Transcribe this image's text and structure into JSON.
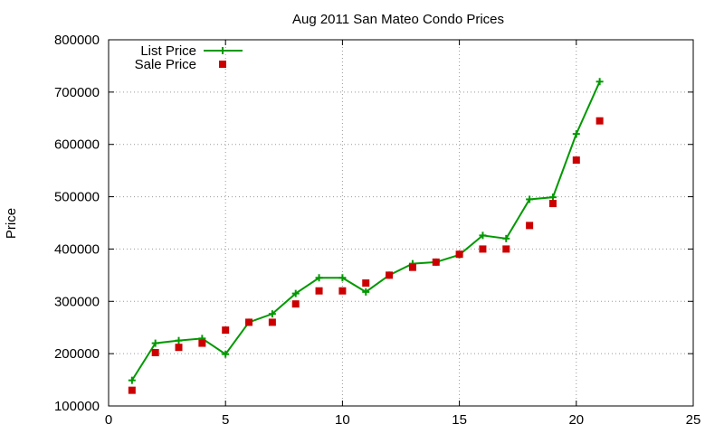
{
  "chart_data": {
    "type": "line",
    "title": "Aug 2011 San Mateo Condo Prices",
    "xlabel": "",
    "ylabel": "Price",
    "xlim": [
      0,
      25
    ],
    "ylim": [
      100000,
      800000
    ],
    "x_ticks": [
      0,
      5,
      10,
      15,
      20,
      25
    ],
    "y_ticks": [
      100000,
      200000,
      300000,
      400000,
      500000,
      600000,
      700000,
      800000
    ],
    "grid": true,
    "legend_position": "top-left",
    "series": [
      {
        "name": "List Price",
        "style": "line-with-plus-markers",
        "color": "#009900",
        "x": [
          1,
          2,
          3,
          4,
          5,
          6,
          7,
          8,
          9,
          10,
          11,
          12,
          13,
          14,
          15,
          16,
          17,
          18,
          19,
          20,
          21
        ],
        "values": [
          149000,
          220000,
          225000,
          229000,
          199000,
          260000,
          276000,
          315000,
          345000,
          345000,
          318000,
          350000,
          372000,
          375000,
          389000,
          426000,
          420000,
          495000,
          499000,
          620000,
          720000
        ]
      },
      {
        "name": "Sale Price",
        "style": "square-markers",
        "color": "#cc0000",
        "x": [
          1,
          2,
          3,
          4,
          5,
          6,
          7,
          8,
          9,
          10,
          11,
          12,
          13,
          14,
          15,
          16,
          17,
          18,
          19,
          20,
          21
        ],
        "values": [
          130000,
          202000,
          212000,
          220000,
          245000,
          260000,
          260000,
          295000,
          320000,
          320000,
          335000,
          350000,
          365000,
          375000,
          390000,
          400000,
          400000,
          445000,
          487000,
          570000,
          645000
        ]
      }
    ]
  }
}
